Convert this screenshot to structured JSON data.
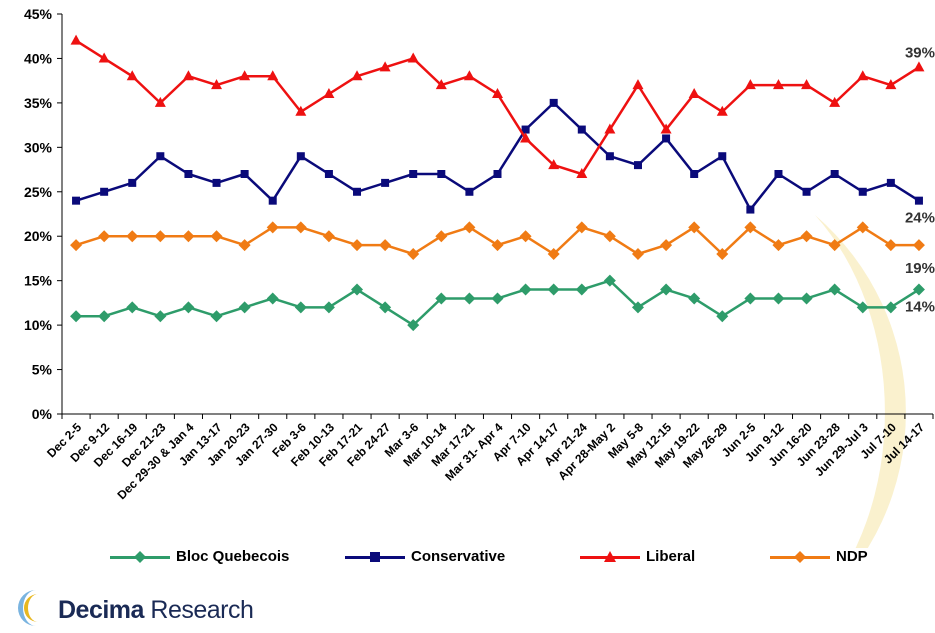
{
  "chart_data": {
    "type": "line",
    "categories": [
      "Dec 2-5",
      "Dec 9-12",
      "Dec 16-19",
      "Dec 21-23",
      "Dec 29-30 & Jan 4",
      "Jan 13-17",
      "Jan 20-23",
      "Jan 27-30",
      "Feb 3-6",
      "Feb 10-13",
      "Feb 17-21",
      "Feb 24-27",
      "Mar 3-6",
      "Mar 10-14",
      "Mar 17-21",
      "Mar 31- Apr 4",
      "Apr 7-10",
      "Apr 14-17",
      "Apr 21-24",
      "Apr 28-May 2",
      "May 5-8",
      "May 12-15",
      "May 19-22",
      "May 26-29",
      "Jun 2-5",
      "Jun 9-12",
      "Jun 16-20",
      "Jun 23-28",
      "Jun 29-Jul 3",
      "Jul 7-10",
      "Jul 14-17"
    ],
    "series": [
      {
        "name": "Bloc Quebecois",
        "color": "#2e9c6a",
        "marker": "diamond",
        "values": [
          11,
          11,
          12,
          11,
          12,
          11,
          12,
          13,
          12,
          12,
          14,
          12,
          10,
          13,
          13,
          13,
          14,
          14,
          14,
          15,
          12,
          14,
          13,
          11,
          13,
          13,
          13,
          14,
          12,
          12,
          14
        ]
      },
      {
        "name": "Conservative",
        "color": "#0a0a7a",
        "marker": "square",
        "values": [
          24,
          25,
          26,
          29,
          27,
          26,
          27,
          24,
          29,
          27,
          25,
          26,
          27,
          27,
          25,
          27,
          32,
          35,
          32,
          29,
          28,
          31,
          27,
          29,
          23,
          27,
          25,
          27,
          25,
          26,
          24
        ]
      },
      {
        "name": "Liberal",
        "color": "#ee1111",
        "marker": "triangle",
        "values": [
          42,
          40,
          38,
          35,
          38,
          37,
          38,
          38,
          34,
          36,
          38,
          39,
          40,
          37,
          38,
          36,
          31,
          28,
          27,
          32,
          37,
          32,
          36,
          34,
          37,
          37,
          37,
          35,
          38,
          37,
          39
        ]
      },
      {
        "name": "NDP",
        "color": "#f07b14",
        "marker": "diamond",
        "values": [
          19,
          20,
          20,
          20,
          20,
          20,
          19,
          21,
          21,
          20,
          19,
          19,
          18,
          20,
          21,
          19,
          20,
          18,
          21,
          20,
          18,
          19,
          21,
          18,
          21,
          19,
          20,
          19,
          21,
          19,
          19
        ]
      }
    ],
    "y_ticks": [
      "0%",
      "5%",
      "10%",
      "15%",
      "20%",
      "25%",
      "30%",
      "35%",
      "40%",
      "45%"
    ],
    "ylim": [
      0,
      45
    ],
    "end_labels": [
      {
        "series": "Liberal",
        "text": "39%"
      },
      {
        "series": "Conservative",
        "text": "24%"
      },
      {
        "series": "NDP",
        "text": "19%"
      },
      {
        "series": "Bloc Quebecois",
        "text": "14%"
      }
    ],
    "grid": false,
    "legend_position": "bottom"
  },
  "legend": {
    "items": [
      {
        "label": "Bloc Quebecois",
        "color": "#2e9c6a",
        "marker": "diamond"
      },
      {
        "label": "Conservative",
        "color": "#0a0a7a",
        "marker": "square"
      },
      {
        "label": "Liberal",
        "color": "#ee1111",
        "marker": "triangle"
      },
      {
        "label": "NDP",
        "color": "#f07b14",
        "marker": "diamond"
      }
    ]
  },
  "logo": {
    "name_bold": "Decima",
    "name_regular": " Research",
    "icon": "crescent-logo-icon"
  }
}
